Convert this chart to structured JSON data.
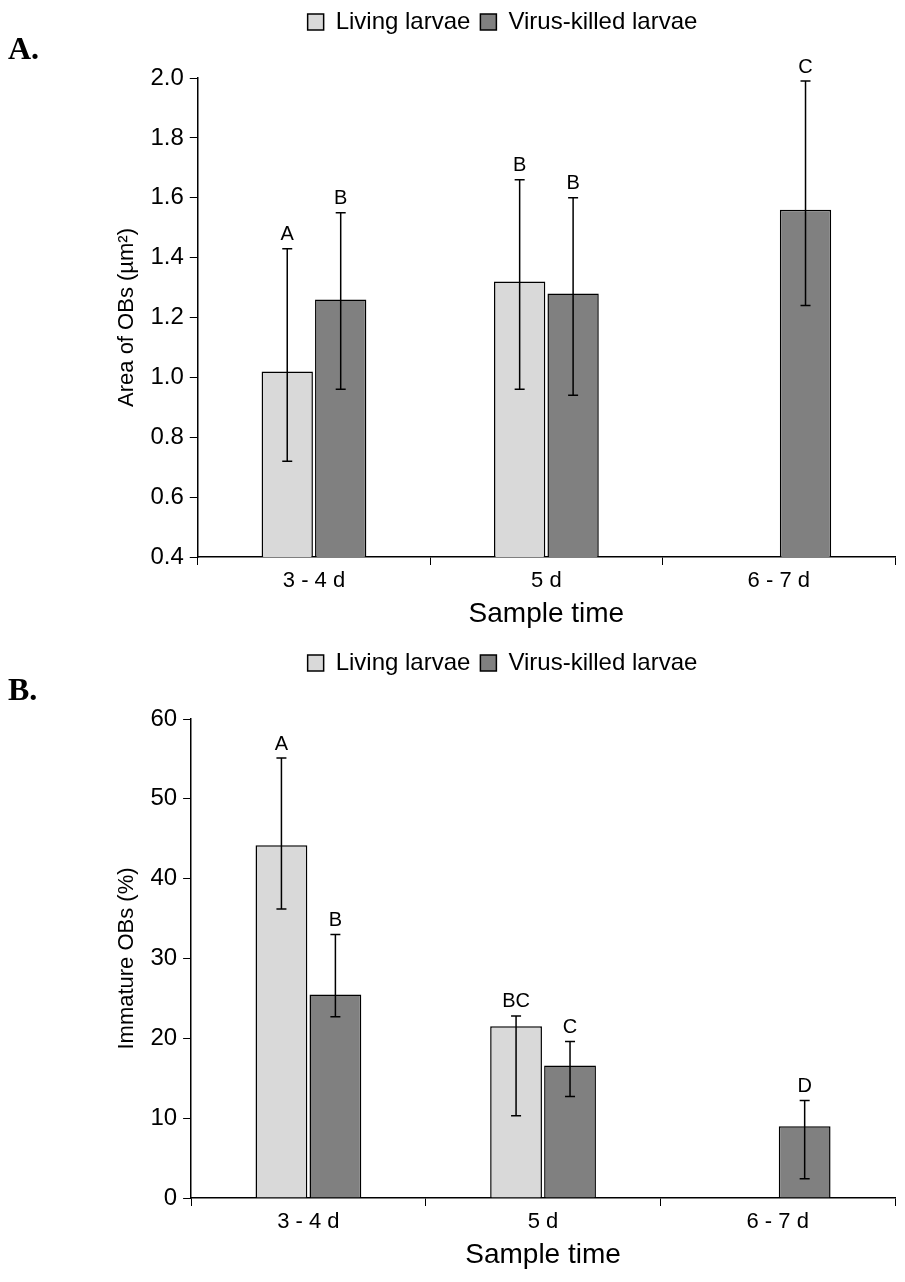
{
  "chart_data": [
    {
      "type": "bar",
      "ylabel": "Area of OBs (µm²)",
      "xlabel": "Sample time",
      "categories": [
        "3 - 4 d",
        "5 d",
        "6 - 7 d"
      ],
      "series": [
        {
          "name": "Living larvae",
          "color": "#d9d9d9",
          "values": [
            1.02,
            1.32,
            null
          ],
          "errors": [
            [
              0.72,
              1.43
            ],
            [
              0.96,
              1.66
            ],
            null
          ]
        },
        {
          "name": "Virus-killed larvae",
          "color": "#808080",
          "values": [
            1.26,
            1.28,
            1.56
          ],
          "errors": [
            [
              0.96,
              1.55
            ],
            [
              0.94,
              1.6
            ],
            [
              1.24,
              1.99
            ]
          ]
        }
      ],
      "ylim": [
        0.4,
        2.0
      ],
      "yticks": [
        {
          "value": 0.4,
          "label": "0.4"
        },
        {
          "value": 0.6,
          "label": "0.6"
        },
        {
          "value": 0.8,
          "label": "0.8"
        },
        {
          "value": 1.0,
          "label": "1.0"
        },
        {
          "value": 1.2,
          "label": "1.2"
        },
        {
          "value": 1.4,
          "label": "1.4"
        },
        {
          "value": 1.6,
          "label": "1.6"
        },
        {
          "value": 1.8,
          "label": "1.8"
        },
        {
          "value": 2.0,
          "label": "2.0"
        }
      ],
      "grid": false,
      "legend": "top",
      "annotations": [
        "A.",
        "A",
        "B",
        "B",
        "B",
        "C"
      ]
    },
    {
      "type": "bar",
      "ylabel": "Immature OBs (%)",
      "xlabel": "Sample time",
      "categories": [
        "3 - 4 d",
        "5 d",
        "6 - 7 d"
      ],
      "series": [
        {
          "name": "Living larvae",
          "color": "#d9d9d9",
          "values": [
            44.2,
            21.5,
            null
          ],
          "errors": [
            [
              36.2,
              55.1
            ],
            [
              10.3,
              22.8
            ],
            null
          ]
        },
        {
          "name": "Virus-killed larvae",
          "color": "#808080",
          "values": [
            25.5,
            16.6,
            9.0
          ],
          "errors": [
            [
              22.7,
              33.0
            ],
            [
              12.7,
              19.6
            ],
            [
              2.4,
              12.2
            ]
          ]
        }
      ],
      "ylim": [
        0,
        60
      ],
      "yticks": [
        0,
        10,
        20,
        30,
        40,
        50,
        60
      ],
      "grid": false,
      "legend": "top",
      "annotations": [
        "B.",
        "A",
        "B",
        "BC",
        "C",
        "D"
      ]
    }
  ]
}
